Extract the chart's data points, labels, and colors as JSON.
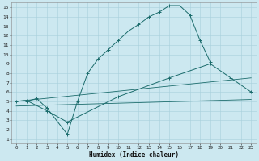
{
  "xlabel": "Humidex (Indice chaleur)",
  "bg_color": "#cce8f0",
  "grid_color": "#a8d0dc",
  "line_color": "#1a6b6b",
  "xlim": [
    -0.5,
    23.5
  ],
  "ylim": [
    0.5,
    15.5
  ],
  "xticks": [
    0,
    1,
    2,
    3,
    4,
    5,
    6,
    7,
    8,
    9,
    10,
    11,
    12,
    13,
    14,
    15,
    16,
    17,
    18,
    19,
    20,
    21,
    22,
    23
  ],
  "yticks": [
    1,
    2,
    3,
    4,
    5,
    6,
    7,
    8,
    9,
    10,
    11,
    12,
    13,
    14,
    15
  ],
  "curve1_x": [
    1,
    2,
    3,
    5,
    6,
    7,
    8,
    9,
    10,
    11,
    12,
    13,
    14,
    15,
    16,
    17,
    18,
    19
  ],
  "curve1_y": [
    5.0,
    5.3,
    4.3,
    1.5,
    5.0,
    8.0,
    9.5,
    10.5,
    11.5,
    12.5,
    13.2,
    14.0,
    14.5,
    15.2,
    15.2,
    14.2,
    11.5,
    9.2
  ],
  "curve2_x": [
    0,
    1,
    3,
    5,
    10,
    15,
    19,
    21,
    23
  ],
  "curve2_y": [
    5.0,
    5.1,
    4.0,
    2.8,
    5.5,
    7.5,
    9.0,
    7.5,
    6.0
  ],
  "curve3_x": [
    0,
    23
  ],
  "curve3_y": [
    5.0,
    7.5
  ],
  "curve4_x": [
    0,
    23
  ],
  "curve4_y": [
    4.5,
    5.2
  ]
}
